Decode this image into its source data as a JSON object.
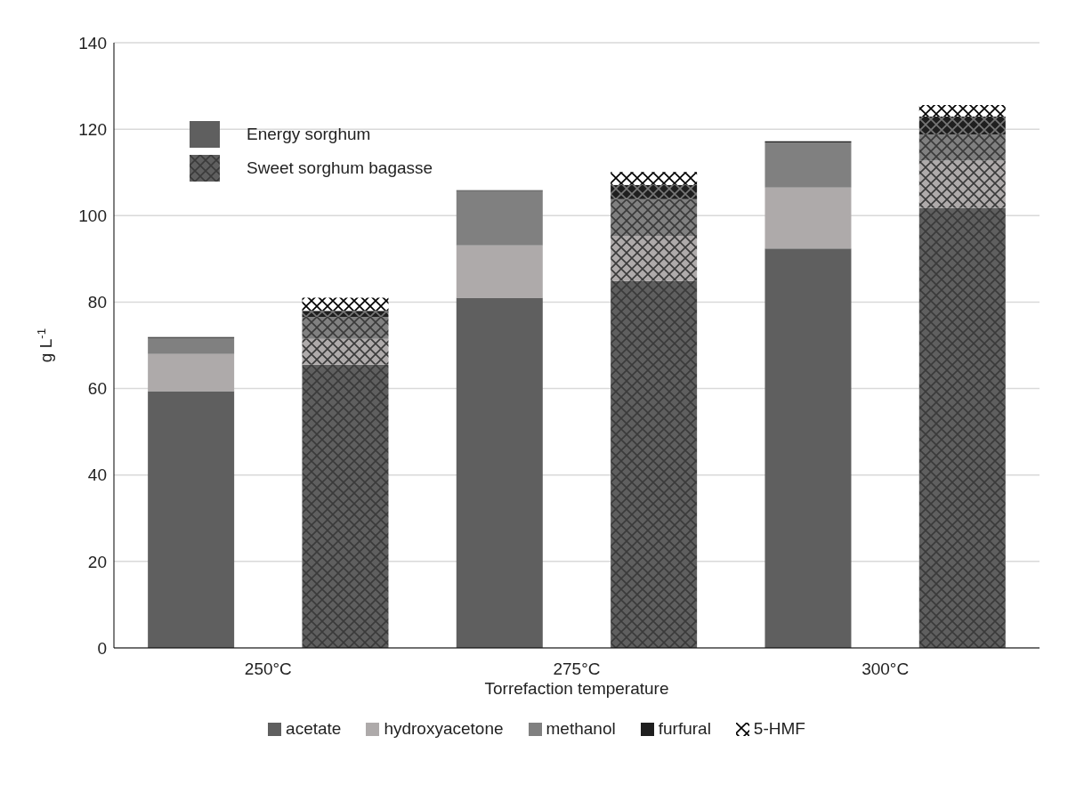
{
  "chart_data": {
    "type": "bar",
    "stacked": true,
    "xlabel": "Torrefaction temperature",
    "ylabel": "g L$^{-1}$",
    "categories": [
      "250°C",
      null,
      "275°C",
      null,
      "300°C",
      null
    ],
    "annotations": [
      "Energy sorghum",
      "Sweet sorghum bagasse"
    ],
    "series": [
      {
        "name": "acetate",
        "color": "#5f5f5f",
        "values": [
          59.4,
          65.5,
          81.0,
          84.9,
          92.4,
          101.8
        ]
      },
      {
        "name": "hydroxyacetone",
        "color": "#aeaaaa",
        "values": [
          8.6,
          6.0,
          12.1,
          10.4,
          14.1,
          10.9
        ]
      },
      {
        "name": "methanol",
        "color": "#808080",
        "values": [
          3.7,
          5.1,
          12.6,
          8.5,
          10.4,
          6.1
        ]
      },
      {
        "name": "furfural",
        "color": "#1f1f1f",
        "values": [
          0.2,
          1.4,
          0.2,
          3.3,
          0.3,
          4.1
        ]
      },
      {
        "name": "5-HMF",
        "color": "#ffffff",
        "values": [
          null,
          3.0,
          null,
          3.0,
          null,
          2.7
        ]
      }
    ],
    "ylim": [
      0,
      140
    ],
    "yticks": [
      0,
      20,
      40,
      60,
      80,
      100,
      120,
      140
    ],
    "grid": "y",
    "legend": "bottom"
  }
}
